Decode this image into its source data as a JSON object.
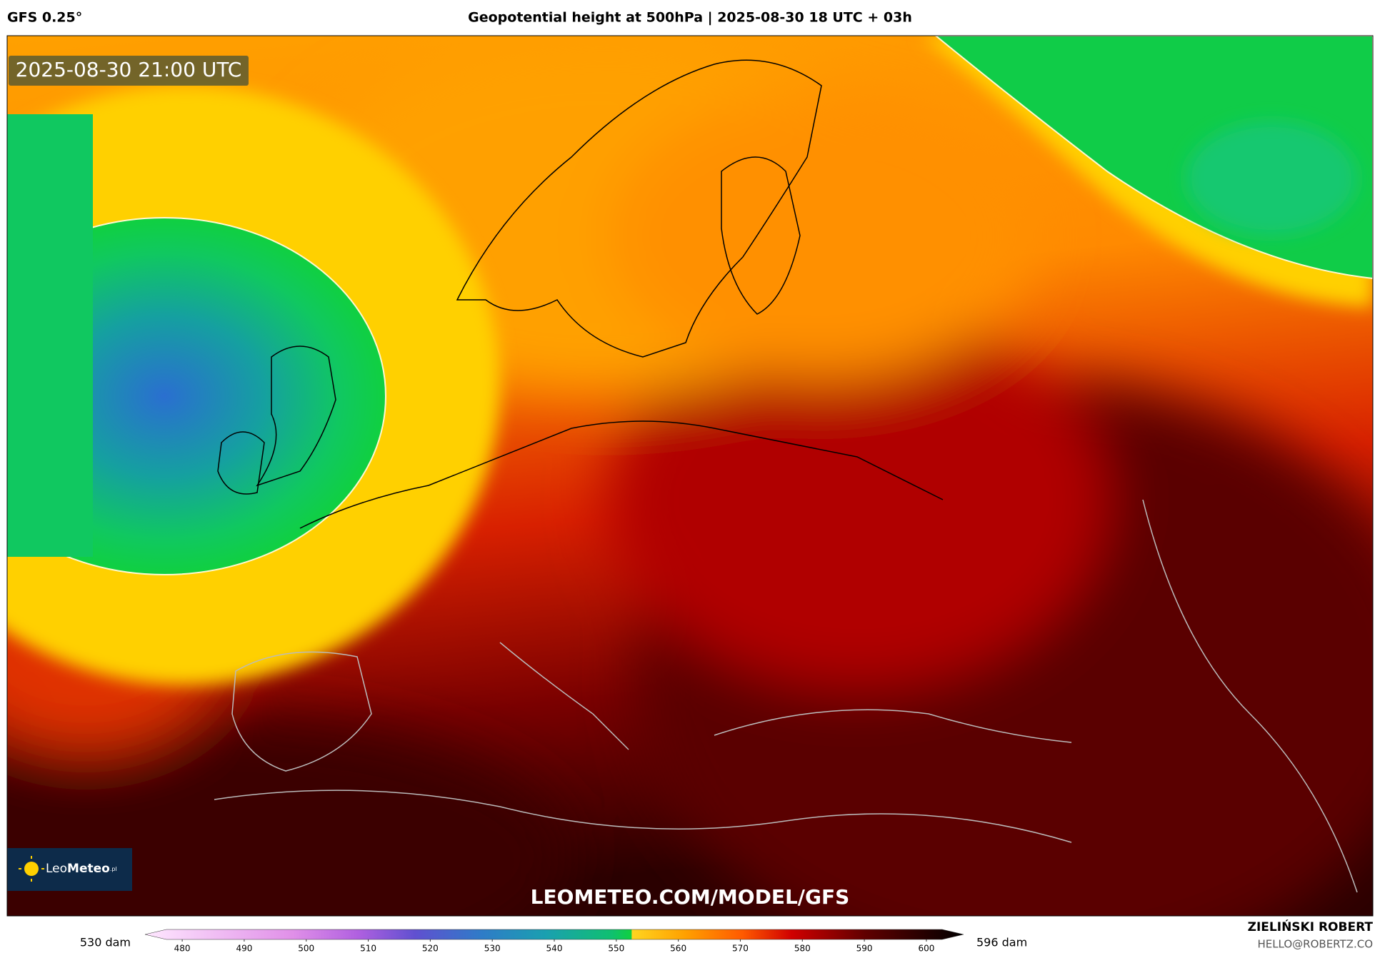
{
  "header": {
    "model": "GFS 0.25°",
    "title": "Geopotential height at 500hPa | 2025-08-30 18 UTC + 03h"
  },
  "map": {
    "timestamp": "2025-08-30 21:00 UTC",
    "logo": {
      "name": "Leo",
      "brand": "Meteo",
      "suffix": ".pl"
    },
    "url": "LEOMETEO.COM/MODEL/GFS"
  },
  "colorbar": {
    "min_label": "530 dam",
    "max_label": "596 dam",
    "range": [
      474,
      606
    ],
    "ticks": [
      480,
      490,
      500,
      510,
      520,
      530,
      540,
      550,
      560,
      570,
      580,
      590,
      600
    ]
  },
  "footer": {
    "author": "ZIELIŃSKI ROBERT",
    "email": "HELLO@ROBERTZ.CO"
  }
}
